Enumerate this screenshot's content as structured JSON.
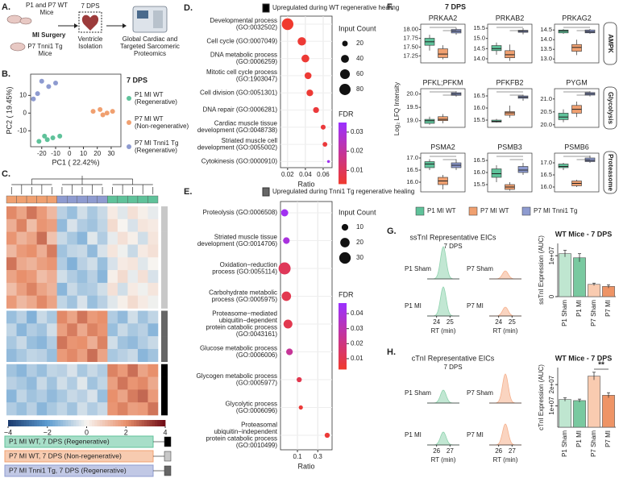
{
  "panel_a": {
    "label": "A.",
    "lines": [
      "P1 and P7 WT",
      "Mice",
      "MI Surgery",
      "P7 Tnni1 Tg",
      "Mice",
      "7 DPS",
      "Ventricle",
      "Isolation",
      "Global Cardiac and",
      "Targeted Sarcomeric",
      "Proteomics"
    ]
  },
  "panel_b": {
    "label": "B.",
    "type": "scatter",
    "xlabel": "PC1 ( 22.42%)",
    "ylabel": "PC2 ( 19.45%)",
    "xlim": [
      -28,
      37
    ],
    "ylim": [
      -19,
      22
    ],
    "xticks": [
      -20,
      -10,
      0,
      10,
      20,
      30
    ],
    "yticks": [
      -10,
      0,
      10
    ],
    "legend_title": "7 DPS",
    "series": [
      {
        "name": "P1 MI WT",
        "subtitle": "(Regenerative)",
        "color": "#5fc29a",
        "x": [
          -18,
          -12,
          -16,
          -7,
          -22
        ],
        "y": [
          -13,
          -14,
          -15,
          -13,
          -16
        ]
      },
      {
        "name": "P7 MI WT",
        "subtitle": "(Non-regenerative)",
        "color": "#f0a070",
        "x": [
          17,
          22,
          27,
          31,
          24
        ],
        "y": [
          1,
          2,
          0,
          1,
          -1
        ]
      },
      {
        "name": "P7 MI Tnni1 Tg",
        "subtitle": "(Regenerative)",
        "color": "#8e9bd0",
        "x": [
          -26,
          -20,
          -15,
          -10,
          -23
        ],
        "y": [
          8,
          18,
          15,
          17,
          11
        ]
      }
    ]
  },
  "panel_c": {
    "label": "C.",
    "type": "heatmap",
    "column_groups": [
      1,
      1,
      1,
      1,
      1,
      2,
      2,
      2,
      2,
      2,
      0,
      0,
      0,
      0,
      0
    ],
    "row_clusters": [
      1,
      1,
      1,
      1,
      1,
      1,
      1,
      1,
      2,
      2,
      2,
      2,
      0,
      0,
      0,
      0
    ],
    "values": [
      [
        2.1,
        1.6,
        2.4,
        1.8,
        1.2,
        -0.8,
        -1.2,
        -0.5,
        -1.0,
        -0.6,
        0.2,
        -0.3,
        0.4,
        0.1,
        -0.2
      ],
      [
        1.4,
        2.2,
        1.1,
        1.9,
        1.7,
        -1.3,
        -0.4,
        -0.9,
        -1.1,
        -0.7,
        0.5,
        0.0,
        -0.4,
        0.3,
        0.2
      ],
      [
        1.9,
        1.3,
        1.6,
        2.5,
        1.0,
        -0.6,
        -1.0,
        -1.4,
        -0.3,
        -0.9,
        -0.2,
        0.4,
        0.1,
        -0.5,
        0.3
      ],
      [
        1.2,
        1.8,
        2.0,
        1.4,
        2.3,
        -1.1,
        -0.7,
        -0.6,
        -1.3,
        -0.4,
        0.3,
        -0.1,
        -0.6,
        0.2,
        0.4
      ],
      [
        2.4,
        1.5,
        1.3,
        1.7,
        1.9,
        -0.9,
        -1.5,
        -0.8,
        -0.5,
        -1.2,
        -0.4,
        0.2,
        0.3,
        -0.3,
        0.0
      ],
      [
        1.6,
        2.0,
        1.8,
        1.1,
        1.4,
        -0.5,
        -0.9,
        -1.2,
        -0.8,
        -1.4,
        0.1,
        0.5,
        -0.2,
        0.4,
        -0.4
      ],
      [
        1.1,
        1.7,
        2.2,
        1.6,
        1.3,
        -1.4,
        -0.6,
        -1.0,
        -0.9,
        -0.5,
        0.4,
        -0.5,
        0.2,
        -0.1,
        0.3
      ],
      [
        1.8,
        1.2,
        1.5,
        2.1,
        1.6,
        -0.7,
        -1.1,
        -0.4,
        -1.2,
        -0.8,
        -0.3,
        0.1,
        0.5,
        0.2,
        -0.1
      ],
      [
        -1.2,
        -0.8,
        -1.5,
        -0.6,
        -1.0,
        2.1,
        1.6,
        2.4,
        1.8,
        2.0,
        -0.9,
        -1.3,
        -0.5,
        -1.1,
        -0.7
      ],
      [
        -0.7,
        -1.4,
        -0.9,
        -1.1,
        -0.5,
        1.7,
        2.3,
        1.5,
        2.2,
        1.9,
        -1.2,
        -0.6,
        -1.0,
        -0.8,
        -1.4
      ],
      [
        -1.0,
        -0.6,
        -1.2,
        -1.4,
        -0.9,
        2.4,
        1.9,
        2.0,
        1.4,
        2.2,
        -0.5,
        -1.1,
        -1.3,
        -0.9,
        -0.6
      ],
      [
        -1.3,
        -1.0,
        -0.7,
        -0.8,
        -1.2,
        1.8,
        2.1,
        1.7,
        2.5,
        1.6,
        -1.0,
        -0.8,
        -0.6,
        -1.4,
        -1.1
      ],
      [
        -1.1,
        -1.4,
        -0.9,
        -1.2,
        -0.7,
        -0.8,
        -0.4,
        -1.0,
        -0.6,
        -0.9,
        2.2,
        1.8,
        2.5,
        1.6,
        2.0
      ],
      [
        -0.8,
        -1.0,
        -1.3,
        -0.6,
        -1.1,
        -0.5,
        -0.9,
        -0.3,
        -1.1,
        -0.7,
        1.7,
        2.4,
        1.9,
        2.1,
        1.5
      ],
      [
        -1.4,
        -0.7,
        -1.1,
        -0.9,
        -1.3,
        -1.0,
        -0.6,
        -0.8,
        -0.4,
        -1.2,
        2.0,
        1.6,
        2.3,
        2.6,
        1.8
      ],
      [
        -0.9,
        -1.2,
        -0.8,
        -1.4,
        -1.0,
        -0.7,
        -1.1,
        -0.5,
        -0.9,
        -0.6,
        1.9,
        2.2,
        1.7,
        1.8,
        2.4
      ]
    ],
    "colorscale": {
      "stops": [
        -4,
        -2,
        0,
        2,
        4
      ],
      "colors": [
        "#1b3a6e",
        "#5b9bd0",
        "#f7f4f0",
        "#e8906c",
        "#6e0a14"
      ],
      "ticks": [
        {
          "value": -4,
          "label": "−4"
        },
        {
          "value": -2,
          "label": "−2"
        },
        0,
        2,
        4
      ]
    },
    "legend": [
      {
        "name": "P1 MI WT, 7 DPS (Regenerative)",
        "color": "#5fc29a",
        "cluster_color": "#000000"
      },
      {
        "name": "P7 MI WT, 7 DPS (Non-regenerative)",
        "color": "#f0a070",
        "cluster_color": "#c8c8c8"
      },
      {
        "name": "P7 MI Tnni1 Tg, 7 DPS (Regenerative)",
        "color": "#8e9bd0",
        "cluster_color": "#666666"
      }
    ]
  },
  "panel_d": {
    "label": "D.",
    "type": "dot",
    "title": "Upregulated during WT regenerative healing",
    "key_color": "#000000",
    "xlabel": "Ratio",
    "log": false,
    "xlim": [
      0.012,
      0.07
    ],
    "xticks": [
      0.02,
      0.04,
      0.06
    ],
    "size_title": "Input Count",
    "size_ticks": [
      20,
      40,
      60,
      80
    ],
    "color_title": "FDR",
    "fdr_lim": [
      0.003,
      0.035
    ],
    "fdr_colors": [
      "#f03a2e",
      "#9b30ff"
    ],
    "fdr_ticks": [
      0.01,
      0.02,
      0.03
    ],
    "terms": [
      {
        "label": [
          "Developmental process",
          "(GO:0032502)"
        ],
        "ratio": 0.02,
        "count": 85,
        "fdr": 0.003
      },
      {
        "label": [
          "Cell cycle (GO:0007049)"
        ],
        "ratio": 0.036,
        "count": 45,
        "fdr": 0.004
      },
      {
        "label": [
          "DNA metabolic process",
          "(GO:0006259)"
        ],
        "ratio": 0.04,
        "count": 38,
        "fdr": 0.004
      },
      {
        "label": [
          "Mitotic cell cycle process",
          "(GO:1903047)"
        ],
        "ratio": 0.043,
        "count": 30,
        "fdr": 0.004
      },
      {
        "label": [
          "Cell division (GO:0051301)"
        ],
        "ratio": 0.045,
        "count": 28,
        "fdr": 0.004
      },
      {
        "label": [
          "DNA repair (GO:0006281)"
        ],
        "ratio": 0.052,
        "count": 22,
        "fdr": 0.005
      },
      {
        "label": [
          "Cardiac muscle tissue",
          "development (GO:0048738)"
        ],
        "ratio": 0.06,
        "count": 15,
        "fdr": 0.005
      },
      {
        "label": [
          "Striated muscle cell",
          "development (GO:0055002)"
        ],
        "ratio": 0.062,
        "count": 14,
        "fdr": 0.005
      },
      {
        "label": [
          "Cytokinesis (GO:0000910)"
        ],
        "ratio": 0.066,
        "count": 5,
        "fdr": 0.033
      }
    ]
  },
  "panel_e": {
    "label": "E.",
    "type": "dot",
    "title": "Upregulated during Tnni1 Tg regenerative healing",
    "key_color": "#666666",
    "xlabel": "Ratio",
    "log": true,
    "xlim": [
      0.04,
      0.65
    ],
    "xticks": [
      0.1,
      0.3
    ],
    "size_title": "Input Count",
    "size_ticks": [
      10,
      20,
      30
    ],
    "color_title": "FDR",
    "fdr_lim": [
      0.003,
      0.047
    ],
    "fdr_colors": [
      "#f03a2e",
      "#9b30ff"
    ],
    "fdr_ticks": [
      0.01,
      0.02,
      0.03,
      0.04
    ],
    "terms": [
      {
        "label": [
          "Proteolysis (GO:0006508)"
        ],
        "ratio": 0.05,
        "count": 12,
        "fdr": 0.044
      },
      {
        "label": [
          "Striated muscle tissue",
          "development (GO:0014706)"
        ],
        "ratio": 0.055,
        "count": 10,
        "fdr": 0.04
      },
      {
        "label": [
          "Oxidation−reduction",
          "process (GO:0055114)"
        ],
        "ratio": 0.05,
        "count": 33,
        "fdr": 0.012
      },
      {
        "label": [
          "Carbohydrate metabolic",
          "process (GO:0005975)"
        ],
        "ratio": 0.055,
        "count": 20,
        "fdr": 0.01
      },
      {
        "label": [
          "Proteasome−mediated",
          "ubiquitin−dependent",
          "protein catabolic process",
          "(GO:0043161)"
        ],
        "ratio": 0.06,
        "count": 18,
        "fdr": 0.01
      },
      {
        "label": [
          "Glucose metabolic process",
          "(GO:0006006)"
        ],
        "ratio": 0.065,
        "count": 10,
        "fdr": 0.025
      },
      {
        "label": [
          "Glycogen metabolic process",
          "(GO:0005977)"
        ],
        "ratio": 0.11,
        "count": 6,
        "fdr": 0.01
      },
      {
        "label": [
          "Glycolytic process",
          "(GO:0006096)"
        ],
        "ratio": 0.12,
        "count": 4,
        "fdr": 0.005
      },
      {
        "label": [
          "Proteasomal",
          "ubiquitin−independent",
          "protein catabolic process",
          "(GO:0010499)"
        ],
        "ratio": 0.5,
        "count": 6,
        "fdr": 0.005
      }
    ]
  },
  "panel_f": {
    "label": "F.",
    "type": "box",
    "title": "7 DPS",
    "ylabel": "Log₂ LFQ Intensity",
    "sections": [
      "AMPK",
      "Glycolysis",
      "Proteasome"
    ],
    "legend": [
      {
        "name": "P1 MI WT",
        "color": "#5fc29a"
      },
      {
        "name": "P7 MI WT",
        "color": "#f0a070"
      },
      {
        "name": "P7 MI Tnni1 Tg",
        "color": "#8e9bd0"
      }
    ],
    "plots": [
      {
        "name": "PRKAA2",
        "ylim": [
          17.05,
          18.15
        ],
        "yticks": [
          17.25,
          {
            "value": 17.5,
            "label": "17.50"
          },
          17.75,
          {
            "value": 18,
            "label": "18.00"
          }
        ],
        "boxes": [
          [
            17.4,
            17.55,
            17.65,
            17.75,
            17.85
          ],
          [
            17.15,
            17.2,
            17.3,
            17.45,
            17.55
          ],
          [
            17.85,
            17.9,
            17.95,
            18.0,
            18.05
          ]
        ]
      },
      {
        "name": "PRKAB2",
        "ylim": [
          13.8,
          15.7
        ],
        "yticks": [
          {
            "value": 14,
            "label": "14.0"
          },
          14.5,
          {
            "value": 15,
            "label": "15.0"
          },
          15.5
        ],
        "boxes": [
          [
            14.2,
            14.4,
            14.5,
            14.65,
            14.8
          ],
          [
            13.9,
            14.05,
            14.2,
            14.4,
            14.7
          ],
          [
            15.2,
            15.3,
            15.35,
            15.4,
            15.5
          ]
        ]
      },
      {
        "name": "PRKAG2",
        "ylim": [
          12.8,
          14.8
        ],
        "yticks": [
          {
            "value": 13,
            "label": "13.0"
          },
          13.5,
          {
            "value": 14,
            "label": "14.0"
          },
          14.5
        ],
        "boxes": [
          [
            14.3,
            14.35,
            14.45,
            14.5,
            14.55
          ],
          [
            13.2,
            13.4,
            13.6,
            13.75,
            14.0
          ],
          [
            14.3,
            14.35,
            14.4,
            14.5,
            14.55
          ]
        ]
      },
      {
        "name": "PFKL;PFKM",
        "ylim": [
          18.75,
          20.2
        ],
        "yticks": [
          {
            "value": 19,
            "label": "19.0"
          },
          19.5,
          {
            "value": 20,
            "label": "20.0"
          }
        ],
        "boxes": [
          [
            18.85,
            18.9,
            19.0,
            19.05,
            19.15
          ],
          [
            18.9,
            19.0,
            19.05,
            19.15,
            19.25
          ],
          [
            19.9,
            19.95,
            20.0,
            20.05,
            20.1
          ]
        ]
      },
      {
        "name": "PFKFB2",
        "ylim": [
          15.2,
          16.8
        ],
        "yticks": [
          15.5,
          {
            "value": 16,
            "label": "16.0"
          },
          16.5
        ],
        "boxes": [
          [
            15.4,
            15.42,
            15.45,
            15.5,
            15.55
          ],
          [
            15.6,
            15.7,
            15.8,
            15.85,
            16.1
          ],
          [
            16.3,
            16.4,
            16.45,
            16.5,
            16.55
          ]
        ]
      },
      {
        "name": "PYGM",
        "ylim": [
          19.9,
          21.4
        ],
        "yticks": [
          {
            "value": 20,
            "label": "20.0"
          },
          20.5,
          {
            "value": 21,
            "label": "21.0"
          }
        ],
        "boxes": [
          [
            20.1,
            20.2,
            20.3,
            20.45,
            20.6
          ],
          [
            20.3,
            20.45,
            20.6,
            20.75,
            20.9
          ],
          [
            21.1,
            21.15,
            21.2,
            21.25,
            21.3
          ]
        ]
      },
      {
        "name": "PSMA2",
        "ylim": [
          15.6,
          17.2
        ],
        "yticks": [
          {
            "value": 16,
            "label": "16.0"
          },
          16.5,
          {
            "value": 17,
            "label": "17.0"
          }
        ],
        "boxes": [
          [
            16.5,
            16.6,
            16.75,
            16.85,
            16.95
          ],
          [
            15.7,
            15.9,
            16.05,
            16.2,
            16.3
          ],
          [
            16.5,
            16.6,
            16.7,
            16.8,
            16.95
          ]
        ]
      },
      {
        "name": "PSMB3",
        "ylim": [
          15.2,
          16.8
        ],
        "yticks": [
          15.5,
          {
            "value": 16,
            "label": "16.0"
          },
          16.5
        ],
        "boxes": [
          [
            15.6,
            15.8,
            15.95,
            16.15,
            16.3
          ],
          [
            15.25,
            15.3,
            15.4,
            15.5,
            15.6
          ],
          [
            15.9,
            16.0,
            16.1,
            16.25,
            16.4
          ]
        ]
      },
      {
        "name": "PSMB6",
        "ylim": [
          15.8,
          17.4
        ],
        "yticks": [
          {
            "value": 16,
            "label": "16.0"
          },
          16.5,
          {
            "value": 17,
            "label": "17.0"
          }
        ],
        "boxes": [
          [
            16.7,
            16.8,
            16.85,
            16.95,
            17.0
          ],
          [
            16.0,
            16.05,
            16.15,
            16.25,
            16.3
          ],
          [
            17.0,
            17.05,
            17.1,
            17.2,
            17.3
          ]
        ]
      }
    ]
  },
  "panel_g": {
    "label": "G.",
    "eic": {
      "title": "ssTnI Representative EICs",
      "subtitle": "7 DPS",
      "labels": [
        "P1 Sham",
        "P7 Sham",
        "P1 MI",
        "P7 MI"
      ],
      "xlabel": "RT (min)",
      "xlim": [
        23.3,
        25.7
      ],
      "xticks": [
        24,
        25
      ]
    },
    "bars": {
      "type": "bar",
      "title": "WT Mice - 7 DPS",
      "ylabel": "ssTnI Expression (AUC)",
      "categories": [
        "P1 Sham",
        "P1 MI",
        "P7 Sham",
        "P7 MI"
      ],
      "values": [
        10500000,
        9500000,
        3000000,
        2500000
      ],
      "errors": [
        800000,
        1000000,
        300000,
        400000
      ],
      "colors": [
        "#bfe6d0",
        "#79c9a0",
        "#f9cbb0",
        "#ee9466"
      ],
      "ylim": [
        0,
        13000000
      ],
      "yticks": [
        0,
        {
          "value": 10000000,
          "label": "1e+07"
        }
      ]
    }
  },
  "panel_h": {
    "label": "H.",
    "eic": {
      "title": "cTnI Representative EICs",
      "subtitle": "7 DPS",
      "labels": [
        "P1 Sham",
        "P7 Sham",
        "P1 MI",
        "P7 MI"
      ],
      "xlabel": "RT (min)",
      "xlim": [
        25.3,
        27.7
      ],
      "xticks": [
        26,
        27
      ]
    },
    "bars": {
      "type": "bar",
      "title": "WT Mice - 7 DPS",
      "ylabel": "cTnI Expression (AUC)",
      "categories": [
        "P1 Sham",
        "P1 MI",
        "P7 Sham",
        "P7 MI"
      ],
      "values": [
        13000000,
        12500000,
        24000000,
        15000000
      ],
      "errors": [
        800000,
        700000,
        1800000,
        1200000
      ],
      "colors": [
        "#bfe6d0",
        "#79c9a0",
        "#f9cbb0",
        "#ee9466"
      ],
      "ylim": [
        0,
        28000000
      ],
      "yticks": [
        {
          "value": 10000000,
          "label": "1e+07"
        },
        {
          "value": 20000000,
          "label": "2e+07"
        }
      ],
      "annotation": "**"
    }
  }
}
